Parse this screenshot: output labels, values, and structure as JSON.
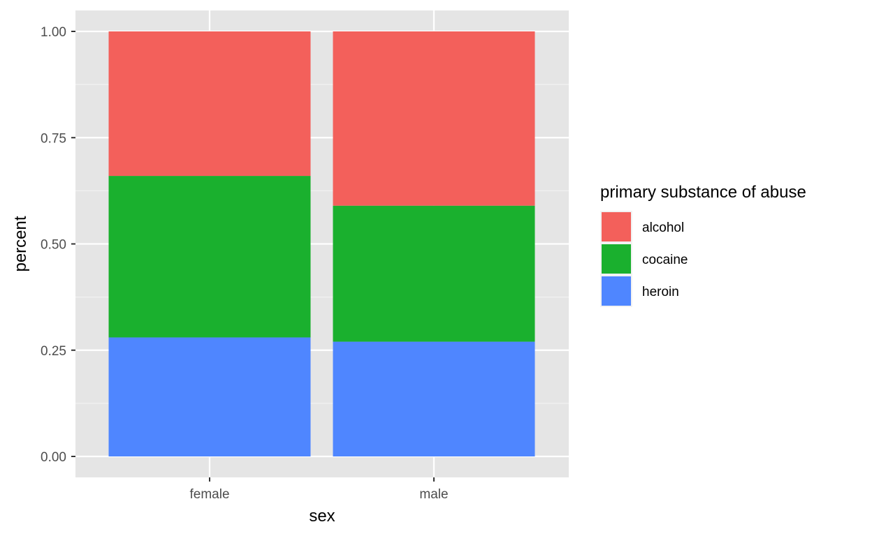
{
  "chart_data": {
    "type": "bar",
    "stacked": true,
    "categories": [
      "female",
      "male"
    ],
    "series": [
      {
        "name": "heroin",
        "values": [
          0.28,
          0.27
        ],
        "color": "#4f86ff"
      },
      {
        "name": "cocaine",
        "values": [
          0.38,
          0.32
        ],
        "color": "#1ab02e"
      },
      {
        "name": "alcohol",
        "values": [
          0.34,
          0.41
        ],
        "color": "#f3605b"
      }
    ],
    "xlabel": "sex",
    "ylabel": "percent",
    "ylim": [
      0,
      1
    ],
    "yticks": [
      "0.00",
      "0.25",
      "0.50",
      "0.75",
      "1.00"
    ],
    "ytick_values": [
      0,
      0.25,
      0.5,
      0.75,
      1.0
    ],
    "grid": true,
    "panel_background": "#e5e5e5",
    "legend": {
      "title": "primary substance of abuse",
      "placement": "right",
      "entries": [
        "alcohol",
        "cocaine",
        "heroin"
      ]
    }
  }
}
